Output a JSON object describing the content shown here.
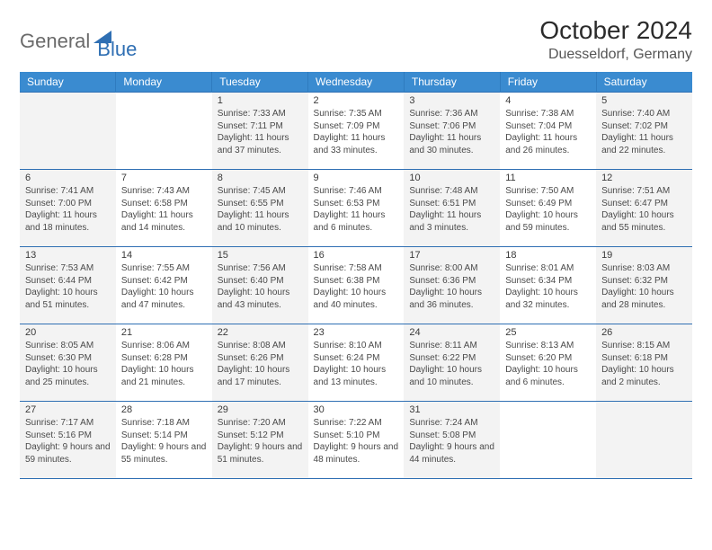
{
  "brand": {
    "part1": "General",
    "part2": "Blue",
    "color_gray": "#6a6a6a",
    "color_blue": "#2f6fb3"
  },
  "title": "October 2024",
  "location": "Duesseldorf, Germany",
  "header_bg": "#3a8bd0",
  "header_text_color": "#ffffff",
  "row_border_color": "#2f6fb3",
  "shaded_bg": "#f3f3f3",
  "text_color": "#4a4a4a",
  "font_size_cell": 10,
  "daynames": [
    "Sunday",
    "Monday",
    "Tuesday",
    "Wednesday",
    "Thursday",
    "Friday",
    "Saturday"
  ],
  "weeks": [
    [
      {
        "empty": true,
        "shaded": true
      },
      {
        "empty": true,
        "shaded": false
      },
      {
        "n": "1",
        "shaded": true,
        "sunrise": "Sunrise: 7:33 AM",
        "sunset": "Sunset: 7:11 PM",
        "daylight": "Daylight: 11 hours and 37 minutes."
      },
      {
        "n": "2",
        "shaded": false,
        "sunrise": "Sunrise: 7:35 AM",
        "sunset": "Sunset: 7:09 PM",
        "daylight": "Daylight: 11 hours and 33 minutes."
      },
      {
        "n": "3",
        "shaded": true,
        "sunrise": "Sunrise: 7:36 AM",
        "sunset": "Sunset: 7:06 PM",
        "daylight": "Daylight: 11 hours and 30 minutes."
      },
      {
        "n": "4",
        "shaded": false,
        "sunrise": "Sunrise: 7:38 AM",
        "sunset": "Sunset: 7:04 PM",
        "daylight": "Daylight: 11 hours and 26 minutes."
      },
      {
        "n": "5",
        "shaded": true,
        "sunrise": "Sunrise: 7:40 AM",
        "sunset": "Sunset: 7:02 PM",
        "daylight": "Daylight: 11 hours and 22 minutes."
      }
    ],
    [
      {
        "n": "6",
        "shaded": true,
        "sunrise": "Sunrise: 7:41 AM",
        "sunset": "Sunset: 7:00 PM",
        "daylight": "Daylight: 11 hours and 18 minutes."
      },
      {
        "n": "7",
        "shaded": false,
        "sunrise": "Sunrise: 7:43 AM",
        "sunset": "Sunset: 6:58 PM",
        "daylight": "Daylight: 11 hours and 14 minutes."
      },
      {
        "n": "8",
        "shaded": true,
        "sunrise": "Sunrise: 7:45 AM",
        "sunset": "Sunset: 6:55 PM",
        "daylight": "Daylight: 11 hours and 10 minutes."
      },
      {
        "n": "9",
        "shaded": false,
        "sunrise": "Sunrise: 7:46 AM",
        "sunset": "Sunset: 6:53 PM",
        "daylight": "Daylight: 11 hours and 6 minutes."
      },
      {
        "n": "10",
        "shaded": true,
        "sunrise": "Sunrise: 7:48 AM",
        "sunset": "Sunset: 6:51 PM",
        "daylight": "Daylight: 11 hours and 3 minutes."
      },
      {
        "n": "11",
        "shaded": false,
        "sunrise": "Sunrise: 7:50 AM",
        "sunset": "Sunset: 6:49 PM",
        "daylight": "Daylight: 10 hours and 59 minutes."
      },
      {
        "n": "12",
        "shaded": true,
        "sunrise": "Sunrise: 7:51 AM",
        "sunset": "Sunset: 6:47 PM",
        "daylight": "Daylight: 10 hours and 55 minutes."
      }
    ],
    [
      {
        "n": "13",
        "shaded": true,
        "sunrise": "Sunrise: 7:53 AM",
        "sunset": "Sunset: 6:44 PM",
        "daylight": "Daylight: 10 hours and 51 minutes."
      },
      {
        "n": "14",
        "shaded": false,
        "sunrise": "Sunrise: 7:55 AM",
        "sunset": "Sunset: 6:42 PM",
        "daylight": "Daylight: 10 hours and 47 minutes."
      },
      {
        "n": "15",
        "shaded": true,
        "sunrise": "Sunrise: 7:56 AM",
        "sunset": "Sunset: 6:40 PM",
        "daylight": "Daylight: 10 hours and 43 minutes."
      },
      {
        "n": "16",
        "shaded": false,
        "sunrise": "Sunrise: 7:58 AM",
        "sunset": "Sunset: 6:38 PM",
        "daylight": "Daylight: 10 hours and 40 minutes."
      },
      {
        "n": "17",
        "shaded": true,
        "sunrise": "Sunrise: 8:00 AM",
        "sunset": "Sunset: 6:36 PM",
        "daylight": "Daylight: 10 hours and 36 minutes."
      },
      {
        "n": "18",
        "shaded": false,
        "sunrise": "Sunrise: 8:01 AM",
        "sunset": "Sunset: 6:34 PM",
        "daylight": "Daylight: 10 hours and 32 minutes."
      },
      {
        "n": "19",
        "shaded": true,
        "sunrise": "Sunrise: 8:03 AM",
        "sunset": "Sunset: 6:32 PM",
        "daylight": "Daylight: 10 hours and 28 minutes."
      }
    ],
    [
      {
        "n": "20",
        "shaded": true,
        "sunrise": "Sunrise: 8:05 AM",
        "sunset": "Sunset: 6:30 PM",
        "daylight": "Daylight: 10 hours and 25 minutes."
      },
      {
        "n": "21",
        "shaded": false,
        "sunrise": "Sunrise: 8:06 AM",
        "sunset": "Sunset: 6:28 PM",
        "daylight": "Daylight: 10 hours and 21 minutes."
      },
      {
        "n": "22",
        "shaded": true,
        "sunrise": "Sunrise: 8:08 AM",
        "sunset": "Sunset: 6:26 PM",
        "daylight": "Daylight: 10 hours and 17 minutes."
      },
      {
        "n": "23",
        "shaded": false,
        "sunrise": "Sunrise: 8:10 AM",
        "sunset": "Sunset: 6:24 PM",
        "daylight": "Daylight: 10 hours and 13 minutes."
      },
      {
        "n": "24",
        "shaded": true,
        "sunrise": "Sunrise: 8:11 AM",
        "sunset": "Sunset: 6:22 PM",
        "daylight": "Daylight: 10 hours and 10 minutes."
      },
      {
        "n": "25",
        "shaded": false,
        "sunrise": "Sunrise: 8:13 AM",
        "sunset": "Sunset: 6:20 PM",
        "daylight": "Daylight: 10 hours and 6 minutes."
      },
      {
        "n": "26",
        "shaded": true,
        "sunrise": "Sunrise: 8:15 AM",
        "sunset": "Sunset: 6:18 PM",
        "daylight": "Daylight: 10 hours and 2 minutes."
      }
    ],
    [
      {
        "n": "27",
        "shaded": true,
        "sunrise": "Sunrise: 7:17 AM",
        "sunset": "Sunset: 5:16 PM",
        "daylight": "Daylight: 9 hours and 59 minutes."
      },
      {
        "n": "28",
        "shaded": false,
        "sunrise": "Sunrise: 7:18 AM",
        "sunset": "Sunset: 5:14 PM",
        "daylight": "Daylight: 9 hours and 55 minutes."
      },
      {
        "n": "29",
        "shaded": true,
        "sunrise": "Sunrise: 7:20 AM",
        "sunset": "Sunset: 5:12 PM",
        "daylight": "Daylight: 9 hours and 51 minutes."
      },
      {
        "n": "30",
        "shaded": false,
        "sunrise": "Sunrise: 7:22 AM",
        "sunset": "Sunset: 5:10 PM",
        "daylight": "Daylight: 9 hours and 48 minutes."
      },
      {
        "n": "31",
        "shaded": true,
        "sunrise": "Sunrise: 7:24 AM",
        "sunset": "Sunset: 5:08 PM",
        "daylight": "Daylight: 9 hours and 44 minutes."
      },
      {
        "empty": true,
        "shaded": false
      },
      {
        "empty": true,
        "shaded": true
      }
    ]
  ]
}
